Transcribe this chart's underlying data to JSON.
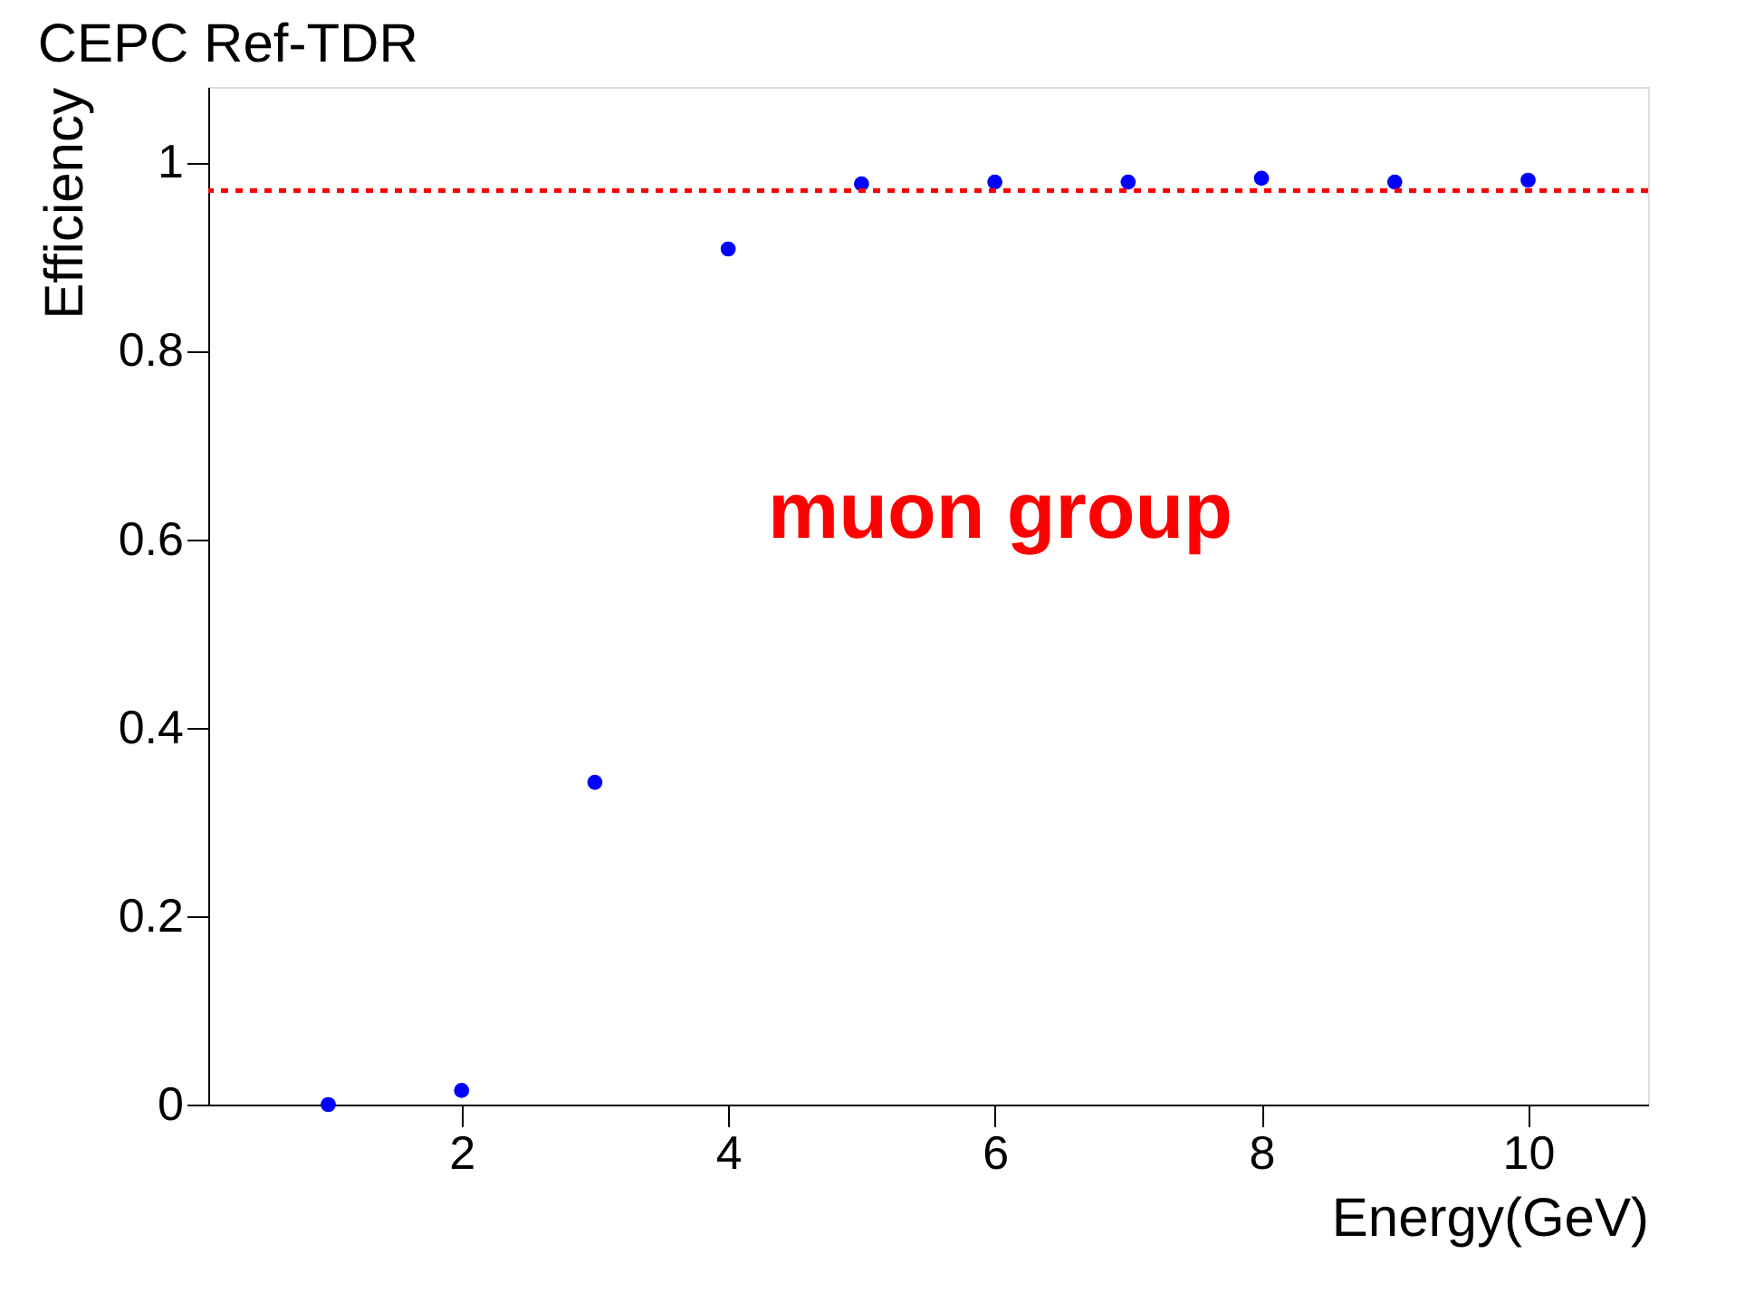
{
  "chart_data": {
    "type": "scatter",
    "title": "CEPC Ref-TDR",
    "xlabel": "Energy(GeV)",
    "ylabel": "Efficiency",
    "x": [
      1,
      2,
      3,
      4,
      5,
      6,
      7,
      8,
      9,
      10
    ],
    "series": [
      {
        "color": "#0000ff",
        "values": [
          0.0,
          0.015,
          0.342,
          0.908,
          0.977,
          0.979,
          0.979,
          0.983,
          0.979,
          0.981
        ]
      }
    ],
    "xlim": [
      0.1,
      10.9
    ],
    "xticks": [
      2,
      4,
      6,
      8,
      10
    ],
    "ylim": [
      0,
      1.08
    ],
    "yticks": [
      0,
      0.2,
      0.4,
      0.6,
      0.8,
      1
    ],
    "ref_lines": [
      {
        "axis": "y",
        "value": 0.97,
        "color": "#ff0000",
        "line_style": "dotted"
      }
    ],
    "annotations": [
      "muon group"
    ],
    "grid": false,
    "legend": false,
    "marker": "circle"
  }
}
